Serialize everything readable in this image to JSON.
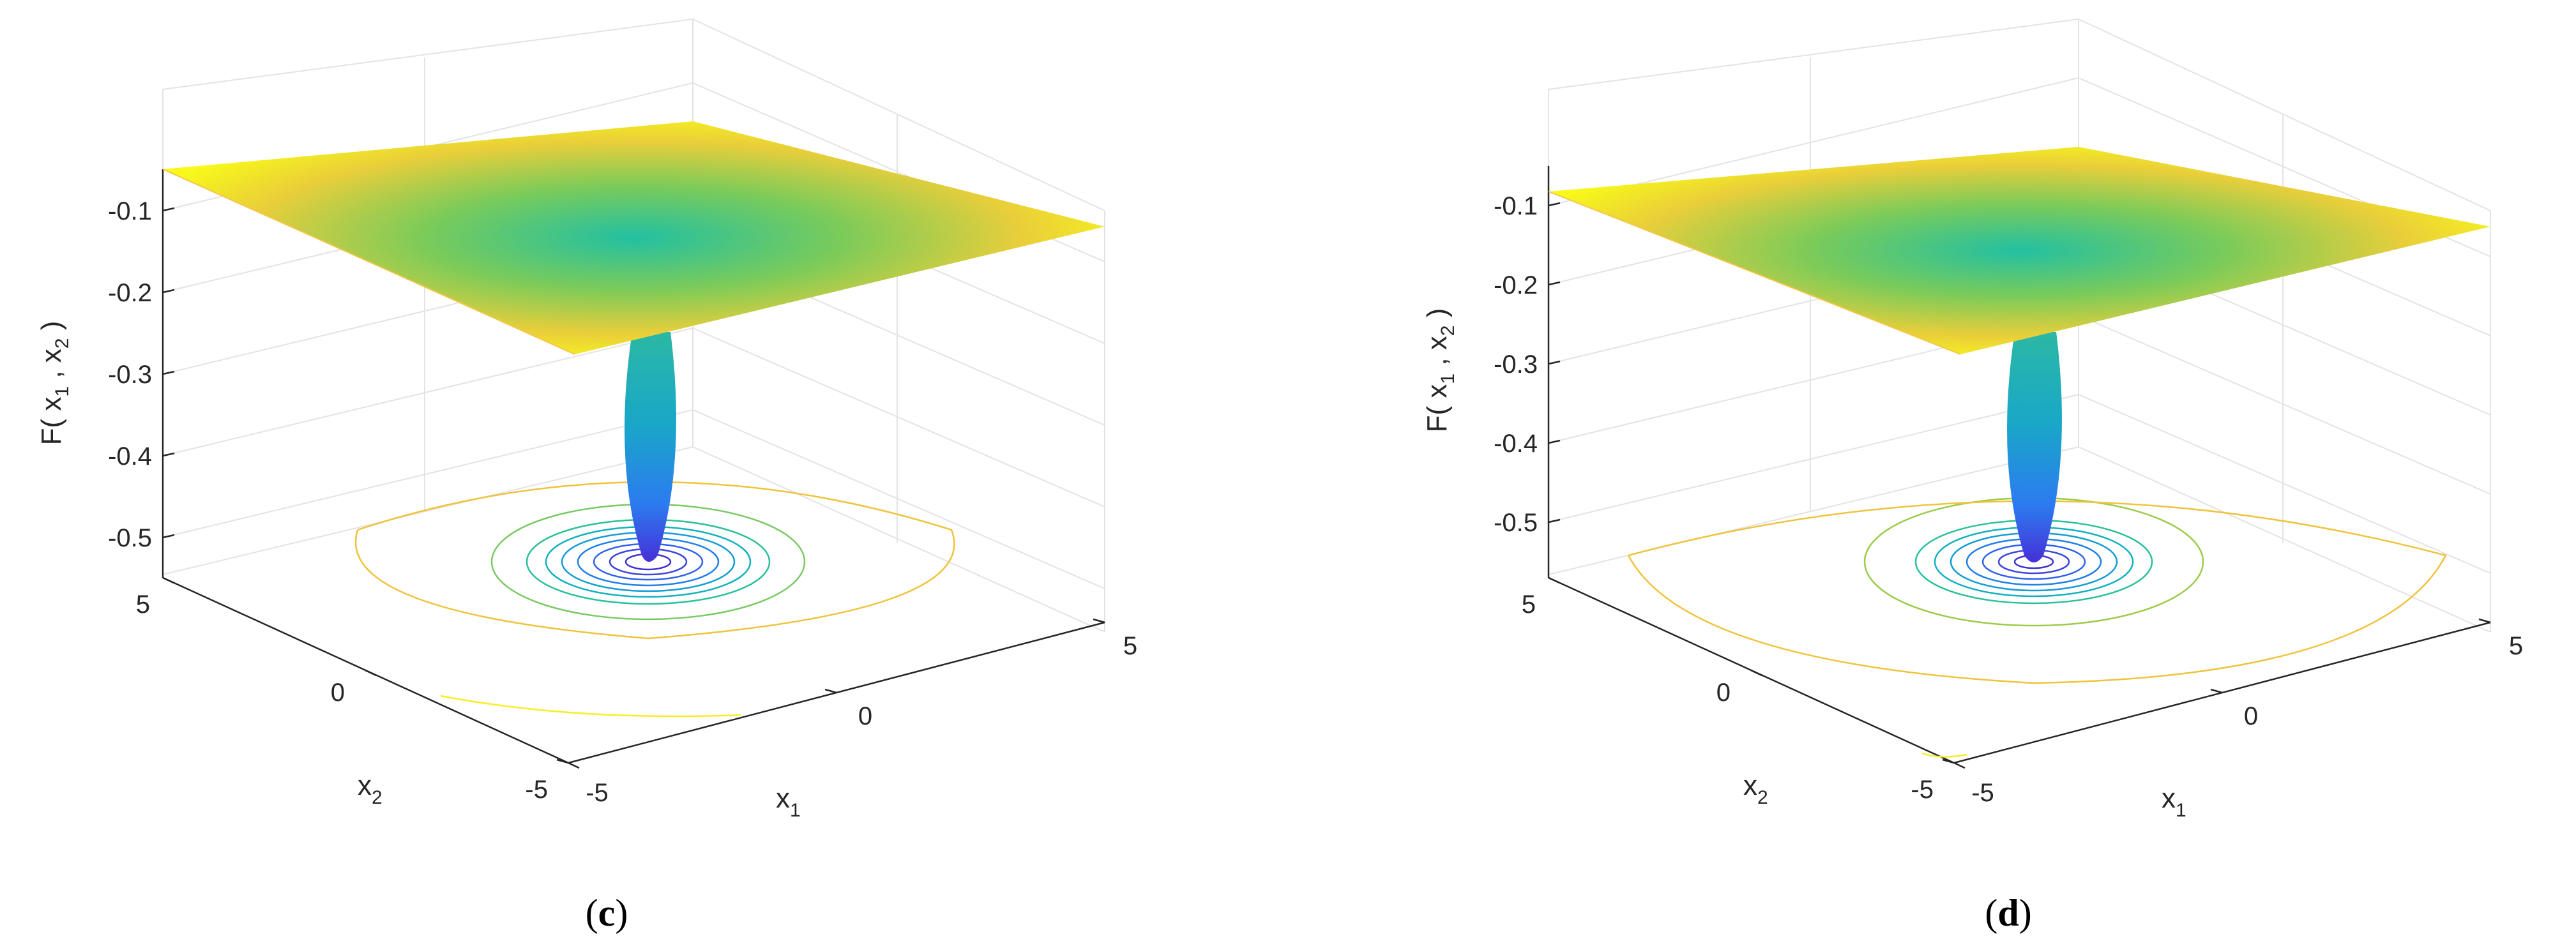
{
  "chart_data": [
    {
      "type": "surface",
      "panel_label": {
        "open": "(",
        "letter": "c",
        "close": ")"
      },
      "zlabel": {
        "pre": "F( x",
        "s1": "1",
        "mid": " , x",
        "s2": "2",
        "post": " )"
      },
      "xlabel": {
        "base": "x",
        "sub": "1"
      },
      "ylabel": {
        "base": "x",
        "sub": "2"
      },
      "xlim": [
        -5,
        5
      ],
      "ylim": [
        -5,
        5
      ],
      "zlim": [
        -0.52,
        -0.05
      ],
      "xticks": [
        "-5",
        "0",
        "5"
      ],
      "yticks": [
        "-5",
        "0",
        "5"
      ],
      "zticks": [
        -0.1,
        -0.2,
        -0.3,
        -0.4,
        -0.5
      ],
      "zticklabels": [
        "-0.1",
        "-0.2",
        "-0.3",
        "-0.4",
        "-0.5"
      ],
      "min_value": -0.52,
      "edge_value": -0.05,
      "colormap": "parula",
      "contours_on_floor": true,
      "grid": true
    },
    {
      "type": "surface",
      "panel_label": {
        "open": "(",
        "letter": "d",
        "close": ")"
      },
      "zlabel": {
        "pre": "F( x",
        "s1": "1",
        "mid": " , x",
        "s2": "2",
        "post": " )"
      },
      "xlabel": {
        "base": "x",
        "sub": "1"
      },
      "ylabel": {
        "base": "x",
        "sub": "2"
      },
      "xlim": [
        -5,
        5
      ],
      "ylim": [
        -5,
        5
      ],
      "zlim": [
        -0.55,
        -0.07
      ],
      "xticks": [
        "-5",
        "0",
        "5"
      ],
      "yticks": [
        "-5",
        "0",
        "5"
      ],
      "zticks": [
        -0.1,
        -0.2,
        -0.3,
        -0.4,
        -0.5
      ],
      "zticklabels": [
        "-0.1",
        "-0.2",
        "-0.3",
        "-0.4",
        "-0.5"
      ],
      "min_value": -0.54,
      "edge_value": -0.07,
      "colormap": "parula",
      "contours_on_floor": true,
      "grid": true
    }
  ]
}
